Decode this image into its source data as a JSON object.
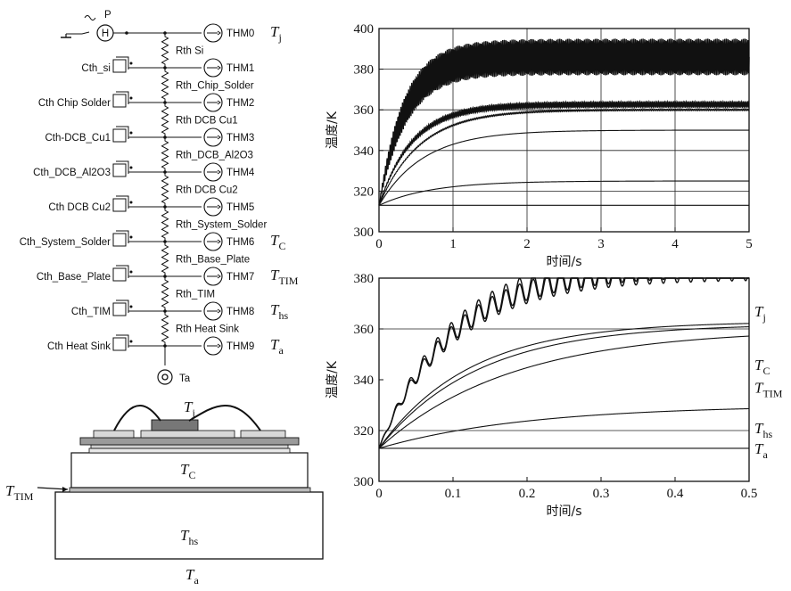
{
  "circuit": {
    "source_label": "P",
    "source_symbol": "H",
    "ambient_label": "Ta",
    "nodes": [
      {
        "cth": "",
        "thm": "THM0",
        "rth": "Rth Si",
        "sym": "T",
        "sub": "j"
      },
      {
        "cth": "Cth_si",
        "thm": "THM1",
        "rth": "Rth_Chip_Solder",
        "sym": "",
        "sub": ""
      },
      {
        "cth": "Cth Chip Solder",
        "thm": "THM2",
        "rth": "Rth DCB Cu1",
        "sym": "",
        "sub": ""
      },
      {
        "cth": "Cth-DCB_Cu1",
        "thm": "THM3",
        "rth": "Rth_DCB_Al2O3",
        "sym": "",
        "sub": ""
      },
      {
        "cth": "Cth_DCB_Al2O3",
        "thm": "THM4",
        "rth": "Rth DCB Cu2",
        "sym": "",
        "sub": ""
      },
      {
        "cth": "Cth DCB Cu2",
        "thm": "THM5",
        "rth": "Rth_System_Solder",
        "sym": "",
        "sub": ""
      },
      {
        "cth": "Cth_System_Solder",
        "thm": "THM6",
        "rth": "Rth_Base_Plate",
        "sym": "T",
        "sub": "C"
      },
      {
        "cth": "Cth_Base_Plate",
        "thm": "THM7",
        "rth": "Rth_TIM",
        "sym": "T",
        "sub": "TIM"
      },
      {
        "cth": "Cth_TIM",
        "thm": "THM8",
        "rth": "Rth Heat Sink",
        "sym": "T",
        "sub": "hs"
      },
      {
        "cth": "Cth Heat Sink",
        "thm": "THM9",
        "rth": "",
        "sym": "T",
        "sub": "a"
      }
    ]
  },
  "structure": {
    "labels": [
      {
        "sym": "T",
        "sub": "j"
      },
      {
        "sym": "T",
        "sub": "C"
      },
      {
        "sym": "T",
        "sub": "TIM"
      },
      {
        "sym": "T",
        "sub": "hs"
      },
      {
        "sym": "T",
        "sub": "a"
      }
    ]
  },
  "chart_data": [
    {
      "type": "line",
      "xlabel": "时间/s",
      "ylabel": "温度/K",
      "xlim": [
        0,
        5
      ],
      "ylim": [
        300,
        400
      ],
      "xticks": [
        "0",
        "1",
        "2",
        "3",
        "4",
        "5"
      ],
      "yticks": [
        "300",
        "320",
        "340",
        "360",
        "380",
        "400"
      ],
      "grid": true,
      "series": [
        {
          "final": 386,
          "tau": 0.35,
          "ripple": 9
        },
        {
          "final": 363,
          "tau": 0.45,
          "ripple": 1.2
        },
        {
          "final": 362,
          "tau": 0.45,
          "ripple": 0.8
        },
        {
          "final": 360,
          "tau": 0.55,
          "ripple": 0.4
        },
        {
          "final": 350,
          "tau": 0.6,
          "ripple": 0
        },
        {
          "final": 325,
          "tau": 0.7,
          "ripple": 0
        },
        {
          "final": 313,
          "tau": 1,
          "ripple": 0
        }
      ]
    },
    {
      "type": "line",
      "xlabel": "时间/s",
      "ylabel": "温度/K",
      "xlim": [
        0,
        0.5
      ],
      "ylim": [
        300,
        380
      ],
      "xticks": [
        "0",
        "0.1",
        "0.2",
        "0.3",
        "0.4",
        "0.5"
      ],
      "yticks": [
        "300",
        "320",
        "340",
        "360",
        "380"
      ],
      "grid": "partial",
      "annotations": [
        {
          "sym": "T",
          "sub": "j",
          "y": 367
        },
        {
          "sym": "T",
          "sub": "C",
          "y": 346
        },
        {
          "sym": "T",
          "sub": "TIM",
          "y": 337
        },
        {
          "sym": "T",
          "sub": "hs",
          "y": 321
        },
        {
          "sym": "T",
          "sub": "a",
          "y": 313
        }
      ],
      "series": [
        {
          "name": "Tj",
          "start": 313,
          "final": 386,
          "tau": 0.45,
          "ripple": 5
        },
        {
          "name": "Tj",
          "start": 313,
          "final": 384,
          "tau": 0.45,
          "ripple": 4.5
        },
        {
          "name": "TC",
          "start": 313,
          "final": 363,
          "tau": 0.55,
          "ripple": 0
        },
        {
          "name": "TC",
          "start": 313,
          "final": 362,
          "tau": 0.6,
          "ripple": 0
        },
        {
          "name": "TTIM",
          "start": 313,
          "final": 360,
          "tau": 0.8,
          "ripple": 0
        },
        {
          "name": "Ths",
          "start": 313,
          "final": 330,
          "tau": 0.9,
          "ripple": 0
        },
        {
          "name": "Ta",
          "start": 313,
          "final": 313,
          "tau": 1,
          "ripple": 0
        }
      ]
    }
  ]
}
